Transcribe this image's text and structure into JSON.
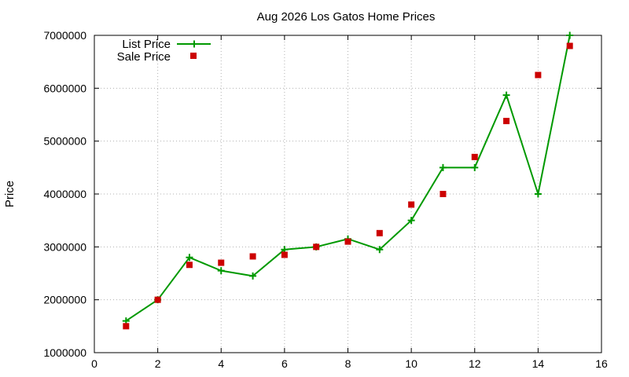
{
  "chart_data": {
    "type": "line",
    "title": "Aug 2026 Los Gatos Home Prices",
    "xlabel": "",
    "ylabel": "Price",
    "xlim": [
      0,
      16
    ],
    "ylim": [
      1000000,
      7000000
    ],
    "x_ticks": [
      "0",
      "2",
      "4",
      "6",
      "8",
      "10",
      "12",
      "14",
      "16"
    ],
    "y_ticks": [
      "1000000",
      "2000000",
      "3000000",
      "4000000",
      "5000000",
      "6000000",
      "7000000"
    ],
    "grid": true,
    "legend_position": "top-left",
    "series": [
      {
        "name": "List Price",
        "style": "linespoints",
        "marker": "plus",
        "color": "#009900",
        "x": [
          1,
          2,
          3,
          4,
          5,
          6,
          7,
          8,
          9,
          10,
          11,
          12,
          13,
          14,
          15
        ],
        "y": [
          1600000,
          2000000,
          2800000,
          2550000,
          2450000,
          2950000,
          3000000,
          3150000,
          2950000,
          3500000,
          4500000,
          4500000,
          5870000,
          4000000,
          7000000
        ]
      },
      {
        "name": "Sale Price",
        "style": "points",
        "marker": "square",
        "color": "#cc0000",
        "x": [
          1,
          2,
          3,
          4,
          5,
          6,
          7,
          8,
          9,
          10,
          11,
          12,
          13,
          14,
          15
        ],
        "y": [
          1500000,
          2000000,
          2660000,
          2700000,
          2820000,
          2850000,
          3000000,
          3100000,
          3260000,
          3800000,
          4000000,
          4700000,
          5380000,
          6250000,
          6800000
        ]
      }
    ]
  }
}
